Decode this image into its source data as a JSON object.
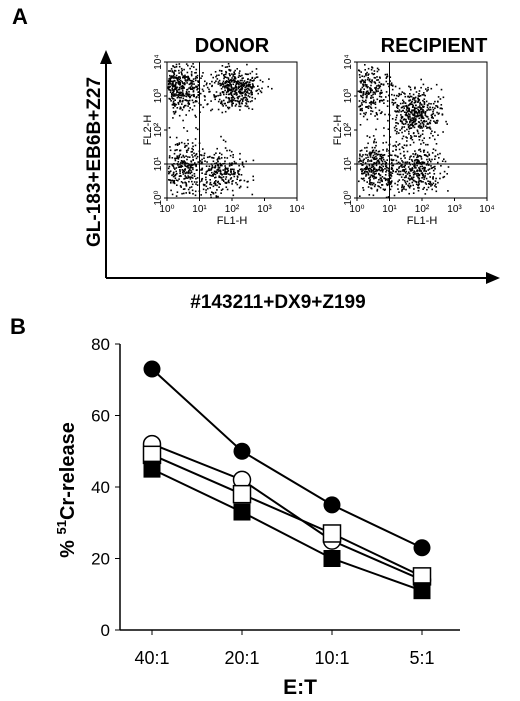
{
  "panel_a": {
    "letter": "A",
    "donor_title": "DONOR",
    "recipient_title": "RECIPIENT",
    "y_axis_label": "GL-183+EB6B+Z27",
    "x_axis_label": "#143211+DX9+Z199",
    "fl2_label": "FL2-H",
    "fl1_label": "FL1-H",
    "tick_labels": [
      "10⁰",
      "10¹",
      "10²",
      "10³",
      "10⁴"
    ]
  },
  "panel_b": {
    "letter": "B"
  },
  "chart_data": [
    {
      "type": "scatter",
      "title": "DONOR",
      "xlabel": "FL1-H",
      "ylabel": "FL2-H",
      "x_scale": "log",
      "y_scale": "log",
      "xlim": [
        1,
        10000
      ],
      "ylim": [
        1,
        10000
      ],
      "quadrant_gates": {
        "x": 10,
        "y": 10
      },
      "populations": [
        {
          "center": [
            2,
            1800
          ],
          "spread": 0.42,
          "weight": 0.34
        },
        {
          "center": [
            120,
            1800
          ],
          "spread": 0.35,
          "weight": 0.28
        },
        {
          "center": [
            3,
            8
          ],
          "spread": 0.42,
          "weight": 0.22
        },
        {
          "center": [
            50,
            6
          ],
          "spread": 0.35,
          "weight": 0.16
        }
      ]
    },
    {
      "type": "scatter",
      "title": "RECIPIENT",
      "xlabel": "FL1-H",
      "ylabel": "FL2-H",
      "x_scale": "log",
      "y_scale": "log",
      "xlim": [
        1,
        10000
      ],
      "ylim": [
        1,
        10000
      ],
      "quadrant_gates": {
        "x": 10,
        "y": 10
      },
      "populations": [
        {
          "center": [
            2,
            1500
          ],
          "spread": 0.4,
          "weight": 0.22
        },
        {
          "center": [
            60,
            300
          ],
          "spread": 0.4,
          "weight": 0.3
        },
        {
          "center": [
            4,
            8
          ],
          "spread": 0.45,
          "weight": 0.28
        },
        {
          "center": [
            70,
            7
          ],
          "spread": 0.35,
          "weight": 0.2
        }
      ]
    },
    {
      "type": "line",
      "categories": [
        "40:1",
        "20:1",
        "10:1",
        "5:1"
      ],
      "xlabel": "E:T",
      "ylabel_prefix": "% ",
      "ylabel_superscript": "51",
      "ylabel_suffix": "Cr-release",
      "ylim": [
        0,
        80
      ],
      "yticks": [
        0,
        20,
        40,
        60,
        80
      ],
      "series": [
        {
          "marker": "filled-circle",
          "values": [
            73,
            50,
            35,
            23
          ]
        },
        {
          "marker": "open-circle",
          "values": [
            52,
            42,
            25,
            14
          ]
        },
        {
          "marker": "open-square",
          "values": [
            49,
            38,
            27,
            15
          ]
        },
        {
          "marker": "filled-square",
          "values": [
            45,
            33,
            20,
            11
          ]
        }
      ]
    }
  ]
}
